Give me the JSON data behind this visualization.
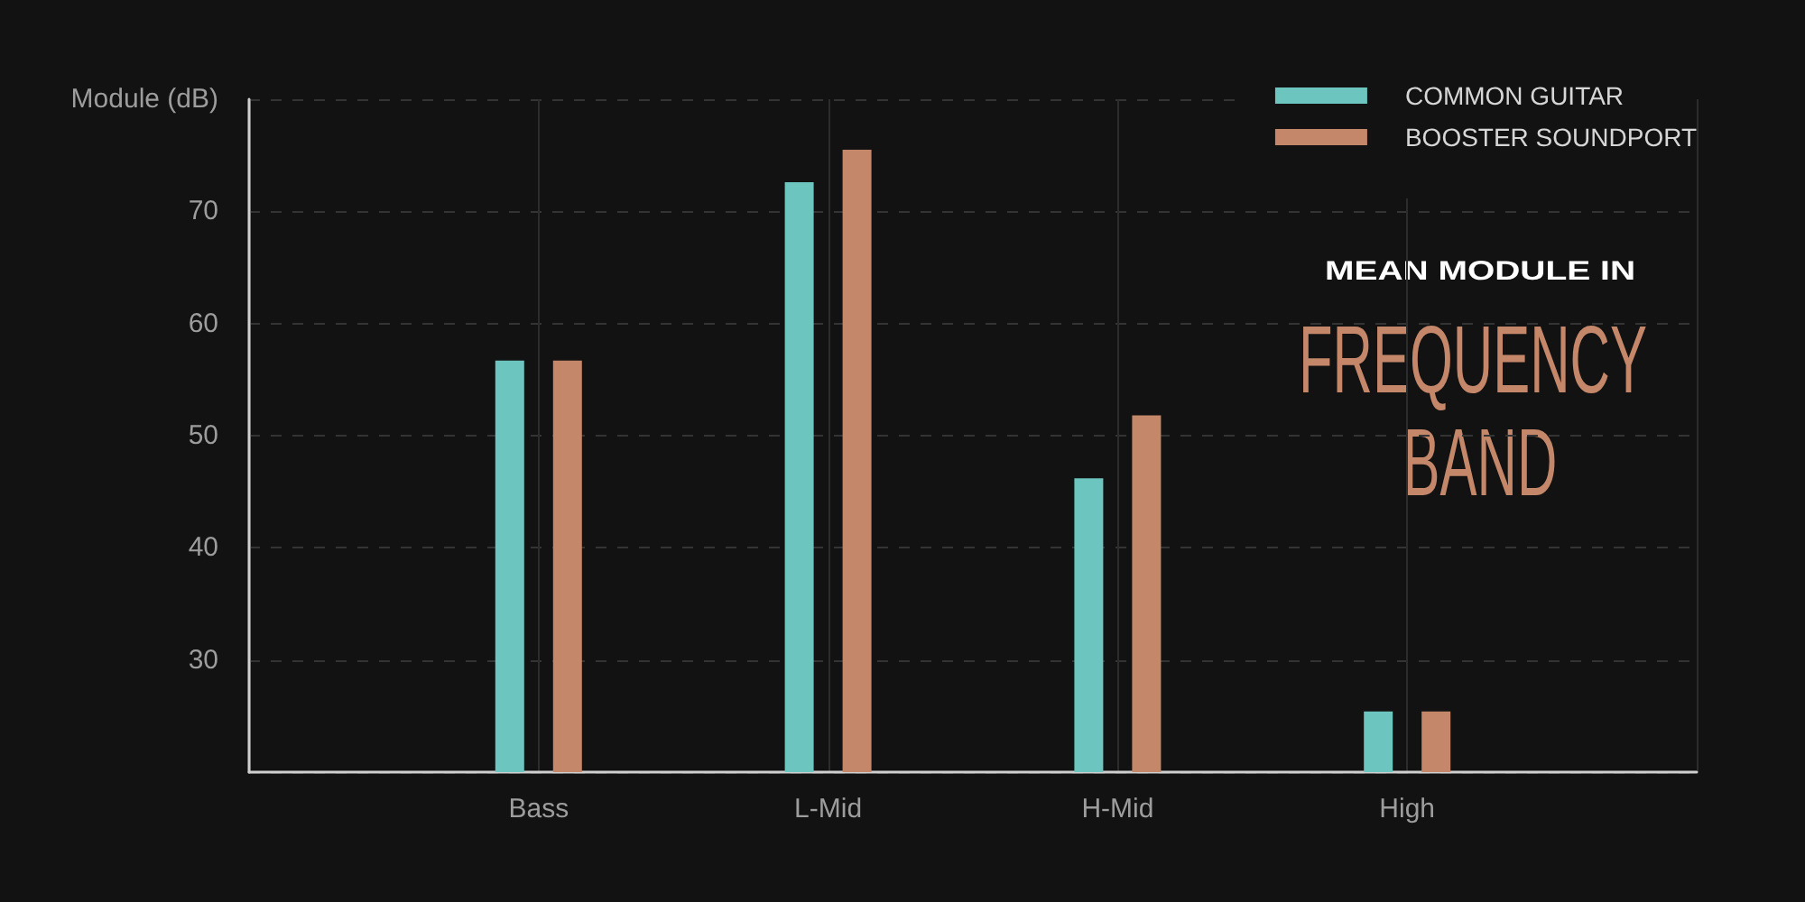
{
  "chart_data": {
    "type": "bar",
    "title": "MEAN MODULE IN",
    "subtitle": "FREQUENCY BAND",
    "ylabel": "Module (dB)",
    "categories": [
      null,
      "Bass",
      "L-Mid",
      "H-Mid",
      "High",
      null
    ],
    "series": [
      {
        "name": "COMMON GUITAR",
        "color": "#6cc5bf",
        "values": [
          null,
          56.7,
          72.6,
          46.2,
          25.4,
          null
        ]
      },
      {
        "name": "BOOSTER SOUNDPORT",
        "color": "#c4876a",
        "values": [
          null,
          56.7,
          75.5,
          51.8,
          25.4,
          null
        ]
      }
    ],
    "ylim": [
      20,
      80
    ],
    "yticks": [
      {
        "value": 20,
        "label": null
      },
      30,
      40,
      50,
      60,
      70,
      {
        "value": 80,
        "label": null
      }
    ],
    "grid": true,
    "legend": "top right"
  }
}
